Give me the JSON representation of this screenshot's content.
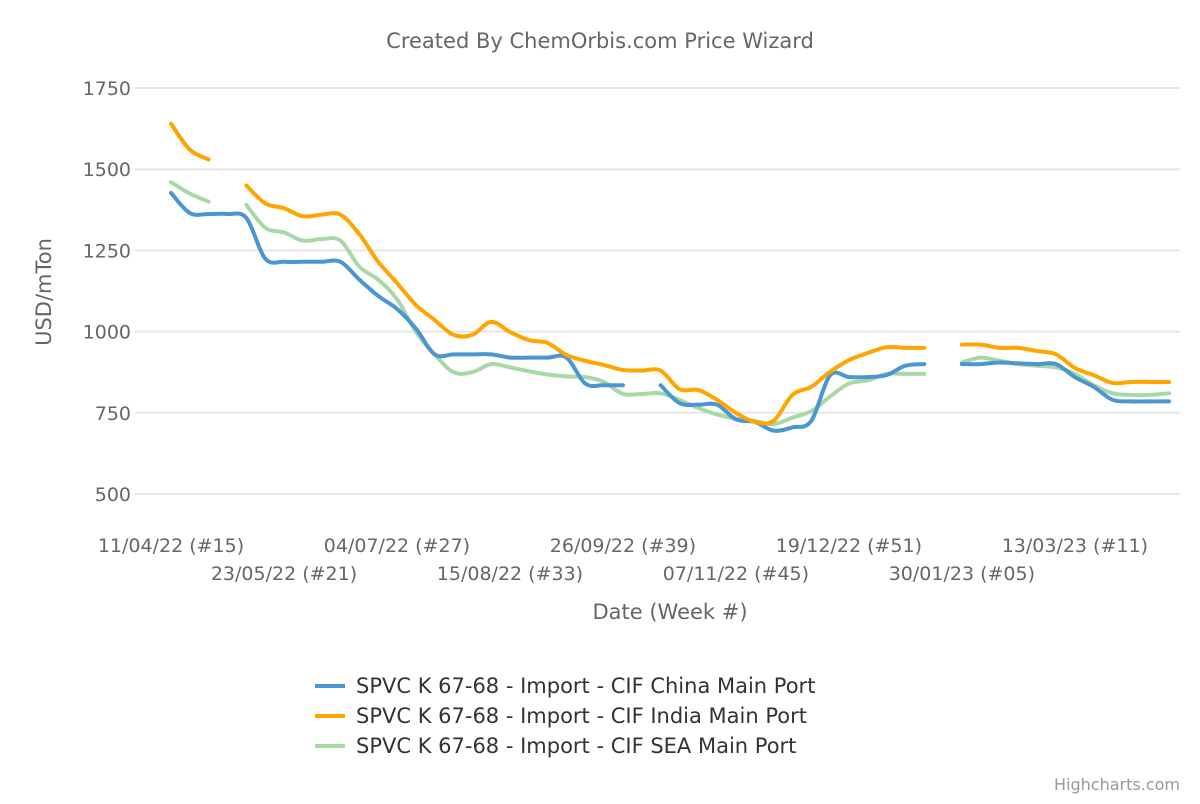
{
  "chart_data": {
    "type": "line",
    "title": "Created By ChemOrbis.com Price Wizard",
    "xlabel": "Date (Week #)",
    "ylabel": "USD/mTon",
    "ylim": [
      500,
      1750
    ],
    "yticks": [
      500,
      750,
      1000,
      1250,
      1500,
      1750
    ],
    "grid": true,
    "legend_placement": "bottom",
    "credits": "Highcharts.com",
    "x": [
      "11/04/22 (#15)",
      "18/04/22 (#16)",
      "25/04/22 (#17)",
      "02/05/22 (#18)",
      "09/05/22 (#19)",
      "16/05/22 (#20)",
      "23/05/22 (#21)",
      "30/05/22 (#22)",
      "06/06/22 (#23)",
      "13/06/22 (#24)",
      "20/06/22 (#25)",
      "27/06/22 (#26)",
      "04/07/22 (#27)",
      "11/07/22 (#28)",
      "18/07/22 (#29)",
      "25/07/22 (#30)",
      "01/08/22 (#31)",
      "08/08/22 (#32)",
      "15/08/22 (#33)",
      "22/08/22 (#34)",
      "29/08/22 (#35)",
      "05/09/22 (#36)",
      "12/09/22 (#37)",
      "19/09/22 (#38)",
      "26/09/22 (#39)",
      "03/10/22 (#40)",
      "10/10/22 (#41)",
      "17/10/22 (#42)",
      "24/10/22 (#43)",
      "31/10/22 (#44)",
      "07/11/22 (#45)",
      "14/11/22 (#46)",
      "21/11/22 (#47)",
      "28/11/22 (#48)",
      "05/12/22 (#49)",
      "12/12/22 (#50)",
      "19/12/22 (#51)",
      "26/12/22 (#52)",
      "02/01/23 (#01)",
      "09/01/23 (#02)",
      "16/01/23 (#03)",
      "23/01/23 (#04)",
      "30/01/23 (#05)",
      "06/02/23 (#06)",
      "13/02/23 (#07)",
      "20/02/23 (#08)",
      "27/02/23 (#09)",
      "06/03/23 (#10)",
      "13/03/23 (#11)",
      "20/03/23 (#12)",
      "27/03/23 (#13)",
      "03/04/23 (#14)",
      "10/04/23 (#15)",
      "17/04/23 (#16)"
    ],
    "xtick_labels": [
      "11/04/22 (#15)",
      "23/05/22 (#21)",
      "04/07/22 (#27)",
      "15/08/22 (#33)",
      "26/09/22 (#39)",
      "07/11/22 (#45)",
      "19/12/22 (#51)",
      "30/01/23 (#05)",
      "13/03/23 (#11)"
    ],
    "series": [
      {
        "name": "SPVC K 67-68 - Import - CIF China Main Port",
        "color": "#4a96d2",
        "values": [
          1427,
          1365,
          1362,
          1362,
          1350,
          1225,
          1215,
          1215,
          1215,
          1215,
          1160,
          1110,
          1070,
          1010,
          930,
          930,
          930,
          930,
          920,
          920,
          920,
          920,
          840,
          835,
          835,
          null,
          835,
          780,
          775,
          775,
          730,
          722,
          695,
          705,
          725,
          865,
          860,
          860,
          866,
          895,
          900,
          null,
          900,
          900,
          905,
          902,
          900,
          900,
          860,
          830,
          790,
          785,
          785,
          785
        ]
      },
      {
        "name": "SPVC K 67-68 - Import - CIF India Main Port",
        "color": "#ffa500",
        "values": [
          1640,
          1560,
          1530,
          null,
          1450,
          1395,
          1380,
          1355,
          1360,
          1360,
          1300,
          1215,
          1150,
          1082,
          1036,
          990,
          990,
          1030,
          999,
          974,
          965,
          928,
          910,
          897,
          882,
          880,
          880,
          823,
          820,
          790,
          750,
          722,
          725,
          805,
          830,
          876,
          912,
          934,
          952,
          950,
          950,
          null,
          960,
          960,
          950,
          950,
          940,
          930,
          888,
          866,
          842,
          845,
          845,
          845
        ]
      },
      {
        "name": "SPVC K 67-68 - Import - CIF SEA Main Port",
        "color": "#a6d9a6",
        "values": [
          1460,
          1425,
          1400,
          null,
          1390,
          1320,
          1305,
          1280,
          1285,
          1280,
          1200,
          1160,
          1100,
          1000,
          930,
          875,
          875,
          900,
          890,
          878,
          868,
          862,
          860,
          845,
          808,
          808,
          810,
          790,
          765,
          745,
          732,
          725,
          715,
          735,
          755,
          800,
          840,
          850,
          870,
          870,
          870,
          null,
          905,
          920,
          910,
          900,
          895,
          890,
          870,
          835,
          810,
          805,
          805,
          810
        ]
      }
    ]
  }
}
